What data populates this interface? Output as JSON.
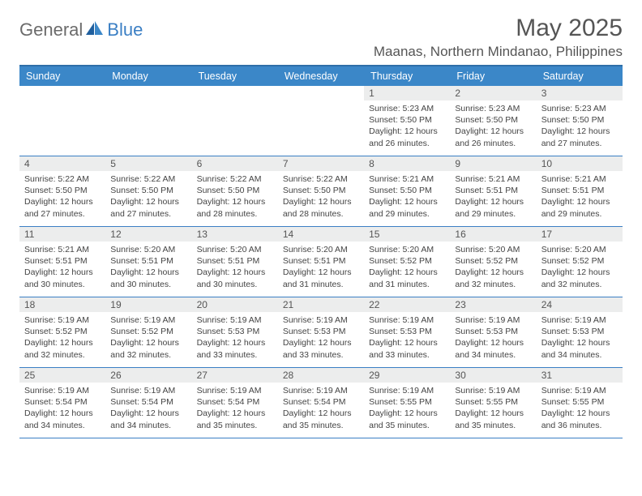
{
  "brand": {
    "part1": "General",
    "part2": "Blue"
  },
  "title": "May 2025",
  "location": "Maanas, Northern Mindanao, Philippines",
  "colors": {
    "header_bg": "#3b87c8",
    "header_border": "#2f6fa8",
    "row_border": "#3b7fc4",
    "daynum_bg": "#eceded",
    "text": "#444444",
    "title_text": "#555555"
  },
  "daynames": [
    "Sunday",
    "Monday",
    "Tuesday",
    "Wednesday",
    "Thursday",
    "Friday",
    "Saturday"
  ],
  "weeks": [
    [
      {
        "empty": true
      },
      {
        "empty": true
      },
      {
        "empty": true
      },
      {
        "empty": true
      },
      {
        "day": "1",
        "sunrise": "Sunrise: 5:23 AM",
        "sunset": "Sunset: 5:50 PM",
        "daylight": "Daylight: 12 hours and 26 minutes."
      },
      {
        "day": "2",
        "sunrise": "Sunrise: 5:23 AM",
        "sunset": "Sunset: 5:50 PM",
        "daylight": "Daylight: 12 hours and 26 minutes."
      },
      {
        "day": "3",
        "sunrise": "Sunrise: 5:23 AM",
        "sunset": "Sunset: 5:50 PM",
        "daylight": "Daylight: 12 hours and 27 minutes."
      }
    ],
    [
      {
        "day": "4",
        "sunrise": "Sunrise: 5:22 AM",
        "sunset": "Sunset: 5:50 PM",
        "daylight": "Daylight: 12 hours and 27 minutes."
      },
      {
        "day": "5",
        "sunrise": "Sunrise: 5:22 AM",
        "sunset": "Sunset: 5:50 PM",
        "daylight": "Daylight: 12 hours and 27 minutes."
      },
      {
        "day": "6",
        "sunrise": "Sunrise: 5:22 AM",
        "sunset": "Sunset: 5:50 PM",
        "daylight": "Daylight: 12 hours and 28 minutes."
      },
      {
        "day": "7",
        "sunrise": "Sunrise: 5:22 AM",
        "sunset": "Sunset: 5:50 PM",
        "daylight": "Daylight: 12 hours and 28 minutes."
      },
      {
        "day": "8",
        "sunrise": "Sunrise: 5:21 AM",
        "sunset": "Sunset: 5:50 PM",
        "daylight": "Daylight: 12 hours and 29 minutes."
      },
      {
        "day": "9",
        "sunrise": "Sunrise: 5:21 AM",
        "sunset": "Sunset: 5:51 PM",
        "daylight": "Daylight: 12 hours and 29 minutes."
      },
      {
        "day": "10",
        "sunrise": "Sunrise: 5:21 AM",
        "sunset": "Sunset: 5:51 PM",
        "daylight": "Daylight: 12 hours and 29 minutes."
      }
    ],
    [
      {
        "day": "11",
        "sunrise": "Sunrise: 5:21 AM",
        "sunset": "Sunset: 5:51 PM",
        "daylight": "Daylight: 12 hours and 30 minutes."
      },
      {
        "day": "12",
        "sunrise": "Sunrise: 5:20 AM",
        "sunset": "Sunset: 5:51 PM",
        "daylight": "Daylight: 12 hours and 30 minutes."
      },
      {
        "day": "13",
        "sunrise": "Sunrise: 5:20 AM",
        "sunset": "Sunset: 5:51 PM",
        "daylight": "Daylight: 12 hours and 30 minutes."
      },
      {
        "day": "14",
        "sunrise": "Sunrise: 5:20 AM",
        "sunset": "Sunset: 5:51 PM",
        "daylight": "Daylight: 12 hours and 31 minutes."
      },
      {
        "day": "15",
        "sunrise": "Sunrise: 5:20 AM",
        "sunset": "Sunset: 5:52 PM",
        "daylight": "Daylight: 12 hours and 31 minutes."
      },
      {
        "day": "16",
        "sunrise": "Sunrise: 5:20 AM",
        "sunset": "Sunset: 5:52 PM",
        "daylight": "Daylight: 12 hours and 32 minutes."
      },
      {
        "day": "17",
        "sunrise": "Sunrise: 5:20 AM",
        "sunset": "Sunset: 5:52 PM",
        "daylight": "Daylight: 12 hours and 32 minutes."
      }
    ],
    [
      {
        "day": "18",
        "sunrise": "Sunrise: 5:19 AM",
        "sunset": "Sunset: 5:52 PM",
        "daylight": "Daylight: 12 hours and 32 minutes."
      },
      {
        "day": "19",
        "sunrise": "Sunrise: 5:19 AM",
        "sunset": "Sunset: 5:52 PM",
        "daylight": "Daylight: 12 hours and 32 minutes."
      },
      {
        "day": "20",
        "sunrise": "Sunrise: 5:19 AM",
        "sunset": "Sunset: 5:53 PM",
        "daylight": "Daylight: 12 hours and 33 minutes."
      },
      {
        "day": "21",
        "sunrise": "Sunrise: 5:19 AM",
        "sunset": "Sunset: 5:53 PM",
        "daylight": "Daylight: 12 hours and 33 minutes."
      },
      {
        "day": "22",
        "sunrise": "Sunrise: 5:19 AM",
        "sunset": "Sunset: 5:53 PM",
        "daylight": "Daylight: 12 hours and 33 minutes."
      },
      {
        "day": "23",
        "sunrise": "Sunrise: 5:19 AM",
        "sunset": "Sunset: 5:53 PM",
        "daylight": "Daylight: 12 hours and 34 minutes."
      },
      {
        "day": "24",
        "sunrise": "Sunrise: 5:19 AM",
        "sunset": "Sunset: 5:53 PM",
        "daylight": "Daylight: 12 hours and 34 minutes."
      }
    ],
    [
      {
        "day": "25",
        "sunrise": "Sunrise: 5:19 AM",
        "sunset": "Sunset: 5:54 PM",
        "daylight": "Daylight: 12 hours and 34 minutes."
      },
      {
        "day": "26",
        "sunrise": "Sunrise: 5:19 AM",
        "sunset": "Sunset: 5:54 PM",
        "daylight": "Daylight: 12 hours and 34 minutes."
      },
      {
        "day": "27",
        "sunrise": "Sunrise: 5:19 AM",
        "sunset": "Sunset: 5:54 PM",
        "daylight": "Daylight: 12 hours and 35 minutes."
      },
      {
        "day": "28",
        "sunrise": "Sunrise: 5:19 AM",
        "sunset": "Sunset: 5:54 PM",
        "daylight": "Daylight: 12 hours and 35 minutes."
      },
      {
        "day": "29",
        "sunrise": "Sunrise: 5:19 AM",
        "sunset": "Sunset: 5:55 PM",
        "daylight": "Daylight: 12 hours and 35 minutes."
      },
      {
        "day": "30",
        "sunrise": "Sunrise: 5:19 AM",
        "sunset": "Sunset: 5:55 PM",
        "daylight": "Daylight: 12 hours and 35 minutes."
      },
      {
        "day": "31",
        "sunrise": "Sunrise: 5:19 AM",
        "sunset": "Sunset: 5:55 PM",
        "daylight": "Daylight: 12 hours and 36 minutes."
      }
    ]
  ]
}
